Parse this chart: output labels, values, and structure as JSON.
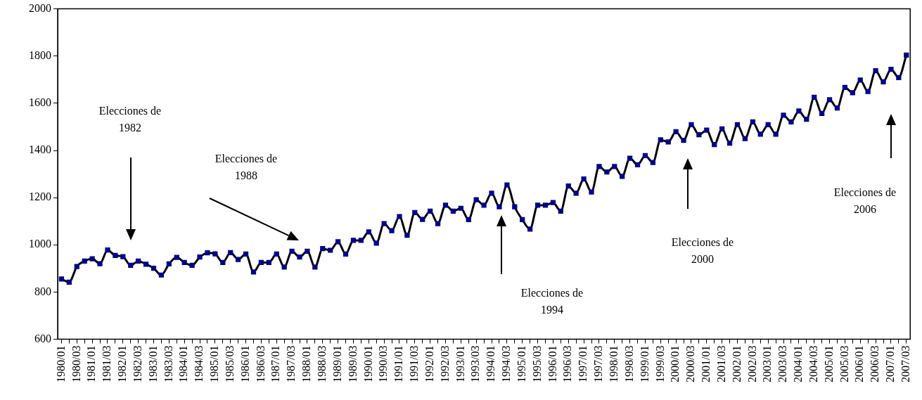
{
  "chart_data": {
    "type": "line",
    "categories": [
      "1980/01",
      null,
      "1980/03",
      null,
      "1981/01",
      null,
      "1981/03",
      null,
      "1982/01",
      null,
      "1982/03",
      null,
      "1983/01",
      null,
      "1983/03",
      null,
      "1984/01",
      null,
      "1984/03",
      null,
      "1985/01",
      null,
      "1985/03",
      null,
      "1986/01",
      null,
      "1986/03",
      null,
      "1987/01",
      null,
      "1987/03",
      null,
      "1988/01",
      null,
      "1988/03",
      null,
      "1989/01",
      null,
      "1989/03",
      null,
      "1990/01",
      null,
      "1990/03",
      null,
      "1991/01",
      null,
      "1991/03",
      null,
      "1992/01",
      null,
      "1992/03",
      null,
      "1993/01",
      null,
      "1993/03",
      null,
      "1994/01",
      null,
      "1994/03",
      null,
      "1995/01",
      null,
      "1995/03",
      null,
      "1996/01",
      null,
      "1996/03",
      null,
      "1997/01",
      null,
      "1997/03",
      null,
      "1998/01",
      null,
      "1998/03",
      null,
      "1999/01",
      null,
      "1999/03",
      null,
      "2000/01",
      null,
      "2000/03",
      null,
      "2001/01",
      null,
      "2001/03",
      null,
      "2002/01",
      null,
      "2002/03",
      null,
      "2003/01",
      null,
      "2003/03",
      null,
      "2004/01",
      null,
      "2004/03",
      null,
      "2005/01",
      null,
      "2005/03",
      null,
      "2006/01",
      null,
      "2006/03",
      null,
      "2007/01",
      null,
      "2007/03"
    ],
    "series": [
      {
        "color": "#000000",
        "values": [
          855,
          842,
          908,
          931,
          941,
          920,
          978,
          955,
          950,
          913,
          931,
          918,
          901,
          872,
          919,
          947,
          925,
          913,
          948,
          966,
          962,
          925,
          967,
          938,
          961,
          885,
          925,
          925,
          961,
          906,
          973,
          948,
          973,
          906,
          984,
          977,
          1013,
          961,
          1019,
          1019,
          1055,
          1007,
          1090,
          1060,
          1120,
          1041,
          1137,
          1108,
          1143,
          1090,
          1168,
          1143,
          1155,
          1107,
          1191,
          1168,
          1219,
          1161,
          1254,
          1161,
          1107,
          1067,
          1168,
          1168,
          1179,
          1143,
          1249,
          1219,
          1279,
          1224,
          1332,
          1309,
          1332,
          1290,
          1367,
          1339,
          1378,
          1349,
          1445,
          1436,
          1479,
          1443,
          1509,
          1467,
          1486,
          1425,
          1491,
          1431,
          1509,
          1450,
          1521,
          1469,
          1509,
          1469,
          1549,
          1521,
          1567,
          1532,
          1625,
          1557,
          1615,
          1580,
          1667,
          1645,
          1698,
          1650,
          1738,
          1691,
          1744,
          1709,
          1804
        ]
      }
    ],
    "ylim": [
      600,
      2000
    ],
    "yticks": [
      600,
      800,
      1000,
      1200,
      1400,
      1600,
      1800,
      2000
    ],
    "grid": false,
    "legend": false,
    "marker": "square",
    "line_style": "solid",
    "annotations": [
      "Elecciones de 1982",
      "Elecciones de 1988",
      "Elecciones de 1994",
      "Elecciones de 2000",
      "Elecciones de 2006"
    ]
  }
}
